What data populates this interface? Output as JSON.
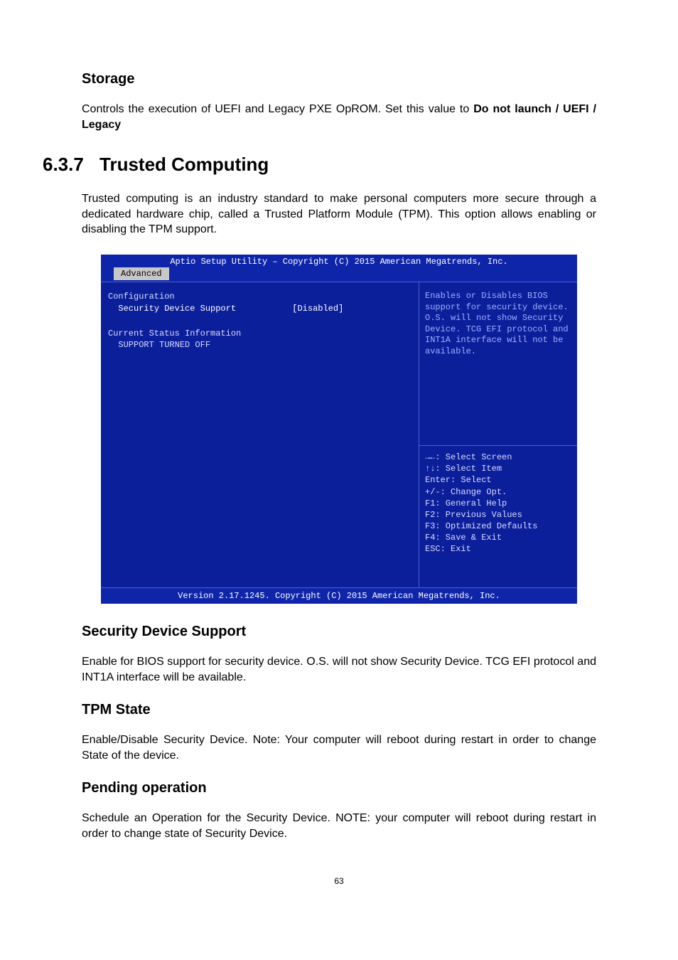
{
  "section1": {
    "title": "Storage",
    "body_prefix": "Controls the execution of UEFI and Legacy PXE OpROM. Set this value to ",
    "body_bold": "Do not launch / UEFI / Legacy"
  },
  "section_main": {
    "number": "6.3.7",
    "title": "Trusted Computing",
    "body": "Trusted computing is an industry standard to make personal computers more secure through a dedicated hardware chip, called a Trusted Platform Module (TPM). This option allows enabling or disabling the TPM support."
  },
  "bios": {
    "header": "Aptio Setup Utility – Copyright (C) 2015 American Megatrends, Inc.",
    "tab": "Advanced",
    "left": {
      "configuration_label": "Configuration",
      "security_device_label": "Security Device Support",
      "security_device_value": "[Disabled]",
      "current_status_label": "Current Status Information",
      "support_turned_off": "SUPPORT TURNED OFF"
    },
    "help": "Enables or Disables BIOS support for security device. O.S. will not show Security Device. TCG EFI protocol and INT1A interface will not be available.",
    "keys": {
      "l1": "→←: Select Screen",
      "l2": "↑↓: Select Item",
      "l3": "Enter: Select",
      "l4": "+/-: Change Opt.",
      "l5": "F1: General Help",
      "l6": "F2: Previous Values",
      "l7": "F3: Optimized Defaults",
      "l8": "F4: Save & Exit",
      "l9": "ESC: Exit"
    },
    "footer": "Version 2.17.1245. Copyright (C) 2015 American Megatrends, Inc."
  },
  "section2": {
    "title": "Security Device Support",
    "body": "Enable for BIOS support for security device. O.S. will not show Security Device. TCG EFI protocol and INT1A interface will be available."
  },
  "section3": {
    "title": "TPM State",
    "body": "Enable/Disable Security Device. Note: Your computer will reboot during restart in order to change State of the device."
  },
  "section4": {
    "title": "Pending operation",
    "body": "Schedule an Operation for the Security Device. NOTE: your computer will reboot during restart in order to change state of Security Device."
  },
  "pagenum": "63"
}
